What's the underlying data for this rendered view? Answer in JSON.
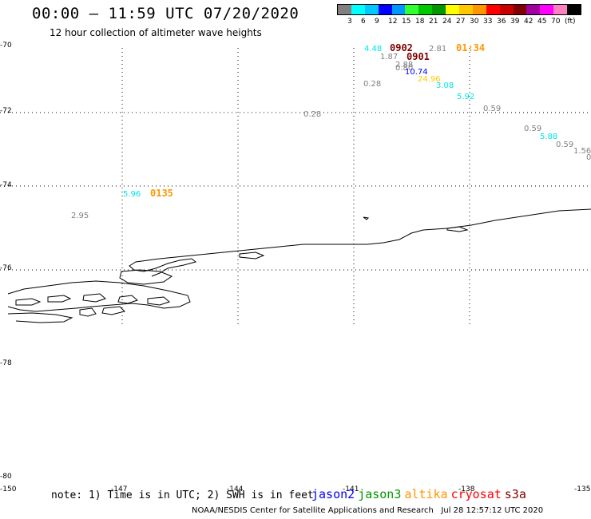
{
  "title": "00:00 – 11:59 UTC 07/20/2020",
  "subtitle": "12 hour collection of altimeter wave heights",
  "legend": {
    "colors": [
      "#808080",
      "#00ffff",
      "#00c8ff",
      "#0000ff",
      "#0096ff",
      "#32ff32",
      "#00c800",
      "#009600",
      "#ffff00",
      "#ffc800",
      "#ff9600",
      "#ff0000",
      "#c80000",
      "#800000",
      "#a000a0",
      "#ff00ff",
      "#ff80c0",
      "#000000"
    ],
    "ticks": [
      "3",
      "6",
      "9",
      "12",
      "15",
      "18",
      "21",
      "24",
      "27",
      "30",
      "33",
      "36",
      "39",
      "42",
      "45",
      "70",
      "(ft)"
    ]
  },
  "lat_labels": [
    "-70",
    "-72",
    "-74",
    "-76",
    "-78",
    "-78",
    "-80"
  ],
  "lon_labels": [
    "-150",
    "-147",
    "-144",
    "-141",
    "-138",
    "-135"
  ],
  "observations": [
    {
      "text": "4.48",
      "color": "#00e5e5"
    },
    {
      "text": "0902",
      "color": "#800000"
    },
    {
      "text": "2.81",
      "color": "#808080"
    },
    {
      "text": "01:34",
      "color": "#ff9600"
    },
    {
      "text": "1.87",
      "color": "#808080"
    },
    {
      "text": "0901",
      "color": "#800000"
    },
    {
      "text": "2.88",
      "color": "#808080"
    },
    {
      "text": "0.80",
      "color": "#808080"
    },
    {
      "text": "10.74",
      "color": "#0000ff"
    },
    {
      "text": "24.96",
      "color": "#ffc800"
    },
    {
      "text": "0.28",
      "color": "#808080"
    },
    {
      "text": "3.08",
      "color": "#00e5e5"
    },
    {
      "text": "5.92",
      "color": "#00e5e5"
    },
    {
      "text": "0.59",
      "color": "#808080"
    },
    {
      "text": "0.28",
      "color": "#808080"
    },
    {
      "text": "0.59",
      "color": "#808080"
    },
    {
      "text": "5.88",
      "color": "#00e5e5"
    },
    {
      "text": "0.59",
      "color": "#808080"
    },
    {
      "text": "1.56",
      "color": "#808080"
    },
    {
      "text": "0",
      "color": "#808080"
    },
    {
      "text": "5.96",
      "color": "#00e5e5"
    },
    {
      "text": "0135",
      "color": "#ff9600"
    },
    {
      "text": "2.95",
      "color": "#808080"
    }
  ],
  "footer": {
    "note": "note: 1) Time is in UTC; 2) SWH is in feet",
    "satellites": [
      {
        "name": "jason2",
        "color": "#0000ff"
      },
      {
        "name": "jason3",
        "color": "#009600"
      },
      {
        "name": "altika",
        "color": "#ff9600"
      },
      {
        "name": "cryosat",
        "color": "#ff0000"
      },
      {
        "name": "s3a",
        "color": "#800000"
      }
    ],
    "credit": "NOAA/NESDIS Center for Satellite Applications and Research",
    "timestamp": "Jul 28 12:57:12 UTC 2020"
  }
}
